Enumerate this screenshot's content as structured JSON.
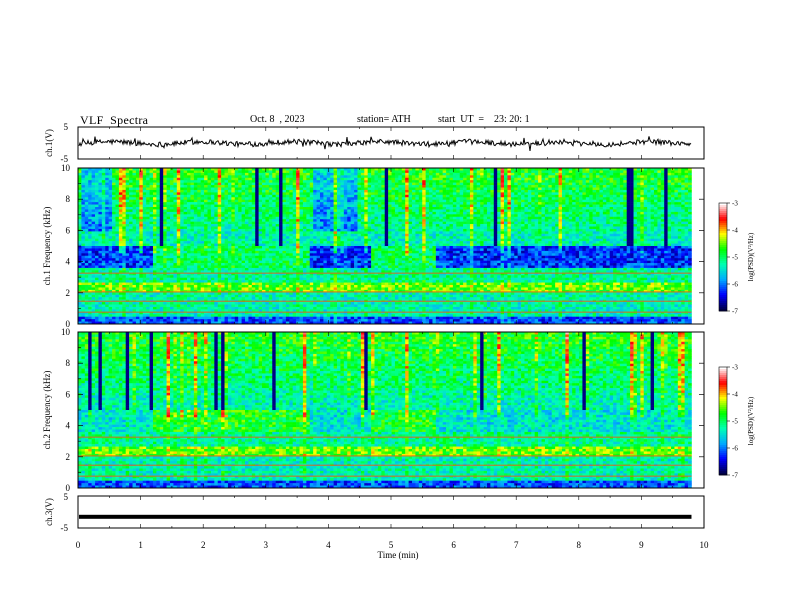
{
  "header": {
    "title": "VLF  Spectra",
    "date": "Oct. 8  , 2023",
    "station": "station= ATH",
    "start_ut": "start  UT  =    23: 20: 1"
  },
  "chart_data": [
    {
      "type": "line",
      "panel": "ch1-waveform",
      "ylabel": "ch.1(V)",
      "ylim": [
        -5,
        5
      ],
      "yticks": [
        "5",
        "-5"
      ],
      "xlim": [
        0,
        10
      ],
      "series": [
        {
          "trace": "noisy waveform",
          "mean": 0.0,
          "amplitude_approx": 1.3,
          "x_end": 9.8
        }
      ]
    },
    {
      "type": "heatmap",
      "panel": "ch1-spectrogram",
      "ylabel": "ch.1 Frequency  (kHz)",
      "ylim": [
        0,
        10
      ],
      "yticks": [
        "0",
        "2",
        "4",
        "6",
        "8",
        "10"
      ],
      "xlim": [
        0,
        9.8
      ],
      "quiet_intervals_min": [
        [
          1.2,
          3.7
        ],
        [
          4.7,
          5.7
        ]
      ],
      "colorscale": {
        "label": "log(PSD)(V²/Hz)",
        "range": [
          -7,
          -3
        ],
        "ticks": [
          "-3",
          "-4",
          "-5",
          "-6",
          "-7"
        ]
      }
    },
    {
      "type": "heatmap",
      "panel": "ch2-spectrogram",
      "ylabel": "ch.2 Frequency  (kHz)",
      "ylim": [
        0,
        10
      ],
      "yticks": [
        "0",
        "2",
        "4",
        "6",
        "8",
        "10"
      ],
      "xlim": [
        0,
        9.8
      ],
      "quiet_intervals_min": [
        [
          1.2,
          3.7
        ],
        [
          4.7,
          5.7
        ]
      ],
      "colorscale": {
        "label": "log(PSD)(V²/Hz)",
        "range": [
          -7,
          -3
        ],
        "ticks": [
          "-3",
          "-4",
          "-5",
          "-6",
          "-7"
        ]
      }
    },
    {
      "type": "line",
      "panel": "ch3-waveform",
      "ylabel": "ch.3(V)",
      "ylim": [
        -5,
        5
      ],
      "yticks": [
        "5",
        "-5"
      ],
      "xlim": [
        0,
        10
      ],
      "series": [
        {
          "trace": "flat",
          "mean": -1.5,
          "x_end": 9.8
        }
      ]
    }
  ],
  "x_axis": {
    "label": "Time  (min)",
    "ticks": [
      "0",
      "1",
      "2",
      "3",
      "4",
      "5",
      "6",
      "7",
      "8",
      "9",
      "10"
    ]
  },
  "colormap": [
    "#000044",
    "#0000ff",
    "#00aaff",
    "#00ffb4",
    "#00ff00",
    "#ffff00",
    "#ff0000",
    "#ffffff"
  ]
}
